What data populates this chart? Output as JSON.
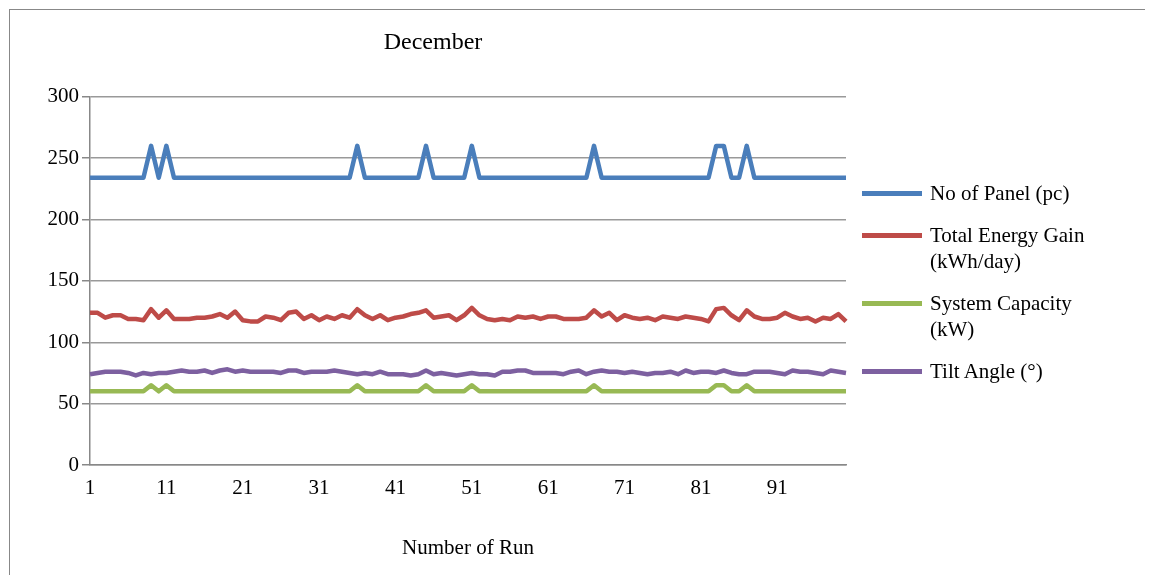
{
  "chart_data": {
    "type": "line",
    "title": "December",
    "xlabel": "Number of Run",
    "categories": [
      "1",
      null,
      null,
      null,
      null,
      null,
      null,
      null,
      null,
      null,
      "11",
      null,
      null,
      null,
      null,
      null,
      null,
      null,
      null,
      null,
      "21",
      null,
      null,
      null,
      null,
      null,
      null,
      null,
      null,
      null,
      "31",
      null,
      null,
      null,
      null,
      null,
      null,
      null,
      null,
      null,
      "41",
      null,
      null,
      null,
      null,
      null,
      null,
      null,
      null,
      null,
      "51",
      null,
      null,
      null,
      null,
      null,
      null,
      null,
      null,
      null,
      "61",
      null,
      null,
      null,
      null,
      null,
      null,
      null,
      null,
      null,
      "71",
      null,
      null,
      null,
      null,
      null,
      null,
      null,
      null,
      null,
      "81",
      null,
      null,
      null,
      null,
      null,
      null,
      null,
      null,
      null,
      "91",
      null,
      null,
      null,
      null,
      null,
      null,
      null,
      null,
      null
    ],
    "series": [
      {
        "name": "No of Panel (pc)",
        "color": "#4a7ebb",
        "values": [
          234,
          234,
          234,
          234,
          234,
          234,
          234,
          234,
          260,
          234,
          260,
          234,
          234,
          234,
          234,
          234,
          234,
          234,
          234,
          234,
          234,
          234,
          234,
          234,
          234,
          234,
          234,
          234,
          234,
          234,
          234,
          234,
          234,
          234,
          234,
          260,
          234,
          234,
          234,
          234,
          234,
          234,
          234,
          234,
          260,
          234,
          234,
          234,
          234,
          234,
          260,
          234,
          234,
          234,
          234,
          234,
          234,
          234,
          234,
          234,
          234,
          234,
          234,
          234,
          234,
          234,
          260,
          234,
          234,
          234,
          234,
          234,
          234,
          234,
          234,
          234,
          234,
          234,
          234,
          234,
          234,
          234,
          260,
          260,
          234,
          234,
          260,
          234,
          234,
          234,
          234,
          234,
          234,
          234,
          234,
          234,
          234,
          234,
          234,
          234
        ]
      },
      {
        "name": "Total Energy Gain (kWh/day)",
        "color": "#be4b48",
        "values": [
          124,
          124,
          120,
          122,
          122,
          119,
          119,
          118,
          127,
          120,
          126,
          119,
          119,
          119,
          120,
          120,
          121,
          123,
          120,
          125,
          118,
          117,
          117,
          121,
          120,
          118,
          124,
          125,
          119,
          122,
          118,
          121,
          119,
          122,
          120,
          127,
          122,
          119,
          122,
          118,
          120,
          121,
          123,
          124,
          126,
          120,
          121,
          122,
          118,
          122,
          128,
          122,
          119,
          118,
          119,
          118,
          121,
          120,
          121,
          119,
          121,
          121,
          119,
          119,
          119,
          120,
          126,
          121,
          124,
          118,
          122,
          120,
          119,
          120,
          118,
          121,
          120,
          119,
          121,
          120,
          119,
          117,
          127,
          128,
          122,
          118,
          126,
          121,
          119,
          119,
          120,
          124,
          121,
          119,
          120,
          117,
          120,
          119,
          123,
          117
        ]
      },
      {
        "name": "System Capacity (kW)",
        "color": "#98b954",
        "values": [
          60,
          60,
          60,
          60,
          60,
          60,
          60,
          60,
          65,
          60,
          65,
          60,
          60,
          60,
          60,
          60,
          60,
          60,
          60,
          60,
          60,
          60,
          60,
          60,
          60,
          60,
          60,
          60,
          60,
          60,
          60,
          60,
          60,
          60,
          60,
          65,
          60,
          60,
          60,
          60,
          60,
          60,
          60,
          60,
          65,
          60,
          60,
          60,
          60,
          60,
          65,
          60,
          60,
          60,
          60,
          60,
          60,
          60,
          60,
          60,
          60,
          60,
          60,
          60,
          60,
          60,
          65,
          60,
          60,
          60,
          60,
          60,
          60,
          60,
          60,
          60,
          60,
          60,
          60,
          60,
          60,
          60,
          65,
          65,
          60,
          60,
          65,
          60,
          60,
          60,
          60,
          60,
          60,
          60,
          60,
          60,
          60,
          60,
          60,
          60
        ]
      },
      {
        "name": "Tilt Angle (°)",
        "color": "#7d60a0",
        "values": [
          74,
          75,
          76,
          76,
          76,
          75,
          73,
          75,
          74,
          75,
          75,
          76,
          77,
          76,
          76,
          77,
          75,
          77,
          78,
          76,
          77,
          76,
          76,
          76,
          76,
          75,
          77,
          77,
          75,
          76,
          76,
          76,
          77,
          76,
          75,
          74,
          75,
          74,
          76,
          74,
          74,
          74,
          73,
          74,
          77,
          74,
          75,
          74,
          73,
          74,
          75,
          74,
          74,
          73,
          76,
          76,
          77,
          77,
          75,
          75,
          75,
          75,
          74,
          76,
          77,
          74,
          76,
          77,
          76,
          76,
          75,
          76,
          75,
          74,
          75,
          75,
          76,
          74,
          77,
          75,
          76,
          76,
          75,
          77,
          75,
          74,
          74,
          76,
          76,
          76,
          75,
          74,
          77,
          76,
          76,
          75,
          74,
          77,
          76,
          75
        ]
      }
    ],
    "ylim": [
      0,
      300
    ],
    "yticks": [
      0,
      50,
      100,
      150,
      200,
      250,
      300
    ],
    "grid": "y",
    "legend": "right",
    "marker": "none",
    "line_style": "solid"
  }
}
